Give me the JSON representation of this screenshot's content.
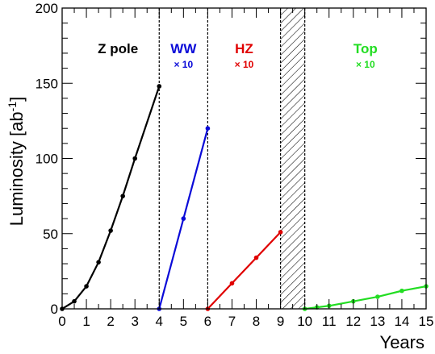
{
  "chart_data": {
    "type": "line",
    "title": "",
    "xlabel": "Years",
    "ylabel": "Luminosity [ab",
    "ylabel_sup": "-1",
    "ylabel_close": "]",
    "xlim": [
      0,
      15
    ],
    "ylim": [
      0,
      200
    ],
    "x_ticks": [
      0,
      1,
      2,
      3,
      4,
      5,
      6,
      7,
      8,
      9,
      10,
      11,
      12,
      13,
      14,
      15
    ],
    "y_ticks": [
      0,
      50,
      100,
      150,
      200
    ],
    "grid": false,
    "phase_boundaries": [
      4,
      6,
      9,
      10
    ],
    "shutdown_period": [
      9,
      10
    ],
    "phases": [
      {
        "label": "Z pole",
        "factor": "",
        "color": "#000000",
        "label_x": 2.3
      },
      {
        "label": "WW",
        "factor": "× 10",
        "color": "#0a0ad8",
        "label_x": 5.0
      },
      {
        "label": "HZ",
        "factor": "× 10",
        "color": "#e00000",
        "label_x": 7.5
      },
      {
        "label": "Top",
        "factor": "× 10",
        "color": "#22dd22",
        "label_x": 12.5
      }
    ],
    "series": [
      {
        "color": "#000000",
        "points": [
          [
            0,
            0
          ],
          [
            0.5,
            5
          ],
          [
            1,
            15
          ],
          [
            1.5,
            31
          ],
          [
            2,
            52
          ],
          [
            2.5,
            75
          ],
          [
            3,
            100
          ],
          [
            4,
            148
          ]
        ]
      },
      {
        "color": "#0a0ad8",
        "points": [
          [
            4,
            0
          ],
          [
            5,
            60
          ],
          [
            6,
            120
          ]
        ]
      },
      {
        "color": "#e00000",
        "points": [
          [
            6,
            0
          ],
          [
            7,
            17
          ],
          [
            8,
            34
          ],
          [
            9,
            51
          ]
        ]
      },
      {
        "color": "#22dd22",
        "points": [
          [
            10,
            0
          ],
          [
            10.5,
            1
          ],
          [
            11,
            2
          ],
          [
            12,
            5
          ],
          [
            13,
            8
          ],
          [
            14,
            12
          ],
          [
            15,
            15
          ]
        ]
      }
    ]
  }
}
